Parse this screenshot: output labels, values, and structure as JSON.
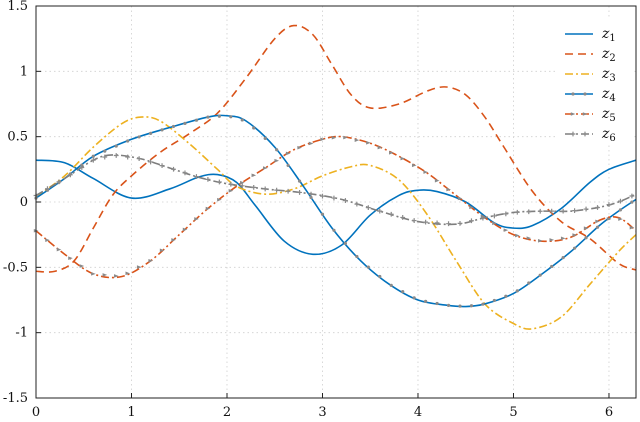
{
  "chart_data": {
    "type": "line",
    "title": "",
    "xlabel": "",
    "ylabel": "",
    "xlim": [
      0,
      6.283
    ],
    "ylim": [
      -1.5,
      1.5
    ],
    "xticks": [
      0,
      1,
      2,
      3,
      4,
      5,
      6
    ],
    "xtick_labels": [
      "0",
      "1",
      "2",
      "3",
      "4",
      "5",
      "6"
    ],
    "yticks": [
      -1.5,
      -1,
      -0.5,
      0,
      0.5,
      1,
      1.5
    ],
    "ytick_labels": [
      "-1.5",
      "-1",
      "-0.5",
      "0",
      "0.5",
      "1",
      "1.5"
    ],
    "grid": "dotted",
    "legend_position": "top-right",
    "series": [
      {
        "name": "z",
        "sub": "1",
        "color": "#0072BD",
        "dash": "solid",
        "marker": "none",
        "x": [
          0,
          0.3,
          0.6,
          1.0,
          1.4,
          1.7,
          1.9,
          2.1,
          2.3,
          2.6,
          2.9,
          3.2,
          3.5,
          3.8,
          4.0,
          4.2,
          4.5,
          4.8,
          5.0,
          5.2,
          5.5,
          5.8,
          6.0,
          6.283
        ],
        "y": [
          0.32,
          0.3,
          0.18,
          0.03,
          0.1,
          0.19,
          0.21,
          0.15,
          -0.03,
          -0.3,
          -0.4,
          -0.33,
          -0.1,
          0.05,
          0.09,
          0.08,
          0.0,
          -0.16,
          -0.2,
          -0.18,
          -0.05,
          0.15,
          0.25,
          0.32
        ]
      },
      {
        "name": "z",
        "sub": "2",
        "color": "#D95319",
        "dash": "dashed",
        "marker": "none",
        "x": [
          0,
          0.2,
          0.4,
          0.6,
          0.8,
          1.0,
          1.3,
          1.6,
          1.9,
          2.2,
          2.5,
          2.7,
          2.9,
          3.1,
          3.3,
          3.5,
          3.8,
          4.1,
          4.3,
          4.5,
          4.7,
          4.9,
          5.2,
          5.5,
          5.8,
          6.1,
          6.283
        ],
        "y": [
          -0.53,
          -0.53,
          -0.45,
          -0.2,
          0.05,
          0.2,
          0.38,
          0.52,
          0.68,
          0.95,
          1.25,
          1.35,
          1.28,
          1.05,
          0.82,
          0.72,
          0.75,
          0.85,
          0.88,
          0.82,
          0.65,
          0.42,
          0.08,
          -0.15,
          -0.28,
          -0.47,
          -0.52
        ]
      },
      {
        "name": "z",
        "sub": "3",
        "color": "#EDB120",
        "dash": "dashdot",
        "marker": "none",
        "x": [
          0,
          0.3,
          0.6,
          0.9,
          1.1,
          1.3,
          1.6,
          1.9,
          2.1,
          2.4,
          2.7,
          3.0,
          3.3,
          3.5,
          3.8,
          4.1,
          4.4,
          4.7,
          5.0,
          5.2,
          5.5,
          5.8,
          6.1,
          6.283
        ],
        "y": [
          0.04,
          0.2,
          0.42,
          0.6,
          0.65,
          0.62,
          0.45,
          0.25,
          0.12,
          0.06,
          0.1,
          0.2,
          0.27,
          0.28,
          0.17,
          -0.1,
          -0.45,
          -0.78,
          -0.93,
          -0.97,
          -0.88,
          -0.63,
          -0.38,
          -0.25
        ]
      },
      {
        "name": "z",
        "sub": "4",
        "color": "#0072BD",
        "dash": "solid",
        "marker": "dot",
        "x": [
          0,
          0.3,
          0.6,
          1.0,
          1.4,
          1.8,
          2.0,
          2.2,
          2.5,
          2.8,
          3.1,
          3.4,
          3.7,
          4.0,
          4.3,
          4.5,
          4.7,
          5.0,
          5.3,
          5.6,
          5.9,
          6.1,
          6.283
        ],
        "y": [
          0.03,
          0.18,
          0.35,
          0.48,
          0.57,
          0.65,
          0.66,
          0.62,
          0.42,
          0.12,
          -0.2,
          -0.45,
          -0.63,
          -0.75,
          -0.79,
          -0.8,
          -0.78,
          -0.7,
          -0.55,
          -0.38,
          -0.18,
          -0.07,
          0.02
        ]
      },
      {
        "name": "z",
        "sub": "5",
        "color": "#D95319",
        "dash": "dashdot",
        "marker": "triangle",
        "x": [
          0,
          0.3,
          0.6,
          0.9,
          1.2,
          1.5,
          1.8,
          2.1,
          2.4,
          2.7,
          3.0,
          3.2,
          3.5,
          3.8,
          4.1,
          4.4,
          4.7,
          5.0,
          5.3,
          5.6,
          5.9,
          6.1,
          6.283
        ],
        "y": [
          -0.22,
          -0.4,
          -0.55,
          -0.57,
          -0.45,
          -0.25,
          -0.05,
          0.12,
          0.26,
          0.4,
          0.48,
          0.5,
          0.45,
          0.35,
          0.22,
          0.05,
          -0.12,
          -0.25,
          -0.3,
          -0.27,
          -0.14,
          -0.12,
          -0.22
        ]
      },
      {
        "name": "z",
        "sub": "6",
        "color": "#7E7E7E",
        "dash": "dashdot",
        "marker": "star",
        "x": [
          0,
          0.3,
          0.6,
          0.8,
          1.1,
          1.4,
          1.7,
          2.0,
          2.4,
          2.8,
          3.2,
          3.6,
          4.0,
          4.4,
          4.7,
          5.0,
          5.3,
          5.6,
          5.9,
          6.1,
          6.283
        ],
        "y": [
          0.05,
          0.18,
          0.32,
          0.36,
          0.33,
          0.26,
          0.19,
          0.14,
          0.1,
          0.07,
          0.02,
          -0.07,
          -0.15,
          -0.17,
          -0.12,
          -0.08,
          -0.07,
          -0.07,
          -0.04,
          0.0,
          0.06
        ]
      }
    ]
  }
}
